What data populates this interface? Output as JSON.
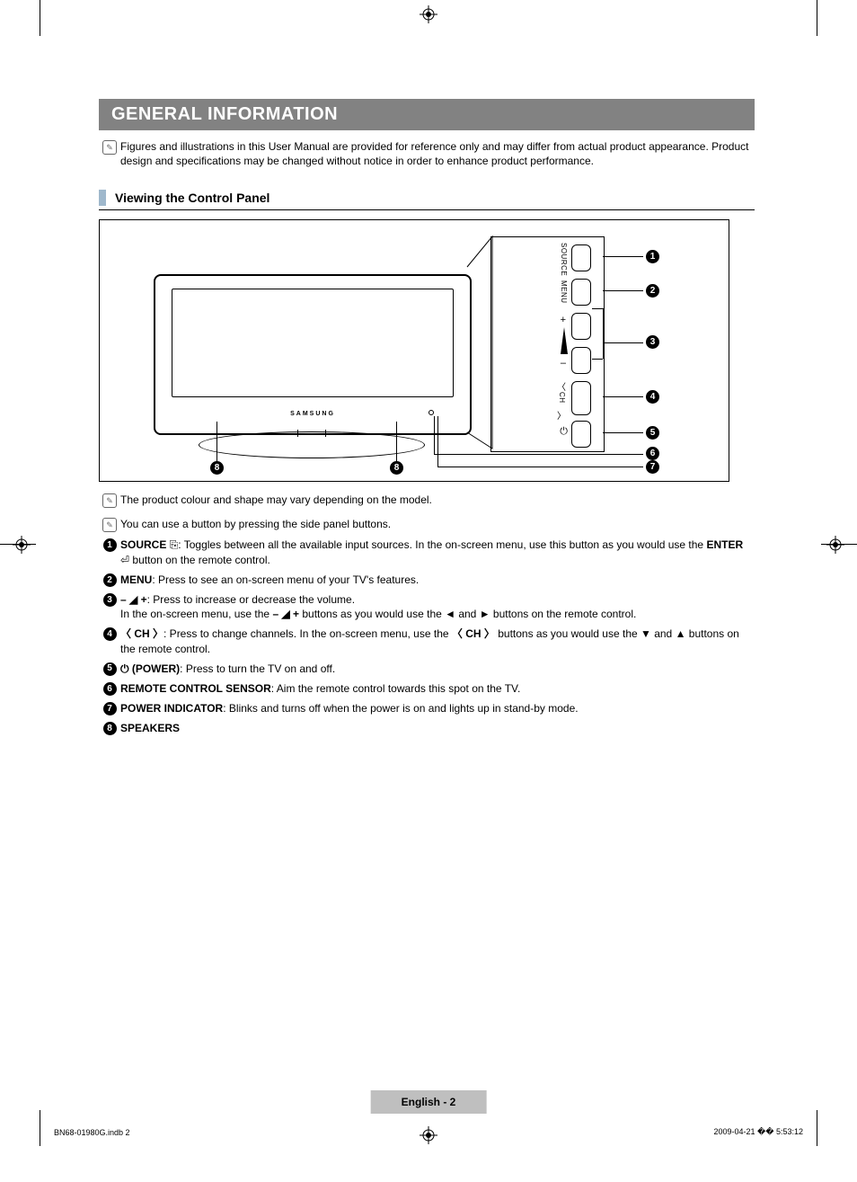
{
  "header": {
    "title": "GENERAL INFORMATION"
  },
  "intro_note": "Figures and illustrations in this User Manual are provided for reference only and may differ from actual product appearance. Product design and specifications may be changed without notice in order to enhance product performance.",
  "subsection": {
    "title": "Viewing the Control Panel"
  },
  "diagram": {
    "tv_brand": "SAMSUNG",
    "panel_labels": [
      "SOURCE",
      "MENU",
      "CH"
    ],
    "vol_plus": "+",
    "vol_minus": "–",
    "callouts": [
      "1",
      "2",
      "3",
      "4",
      "5",
      "6",
      "7",
      "8"
    ]
  },
  "notes_after": [
    "The product colour and shape may vary depending on the model.",
    "You can use a button by pressing the side panel buttons."
  ],
  "items": [
    {
      "n": "1",
      "html": "<b>SOURCE</b> <span class='inline-icon'>⎘</span>: Toggles between all the available input sources. In the on-screen menu, use this button as you would use the <b>ENTER</b> <span class='inline-icon'>⏎</span> button on the remote control."
    },
    {
      "n": "2",
      "html": "<b>MENU</b>: Press to see an on-screen menu of your TV's features."
    },
    {
      "n": "3",
      "html": "<b>– ◢ +</b>: Press to increase or decrease the volume.<br>In the on-screen menu, use the <b>– ◢ +</b> buttons as you would use the ◄ and ► buttons on the remote control."
    },
    {
      "n": "4",
      "html": "<b>〈 CH 〉</b>: Press to change channels. In the on-screen menu, use the <b>〈 CH 〉</b> buttons as you would use the ▼ and ▲ buttons on the remote control."
    },
    {
      "n": "5",
      "html": "<b>⏻ (POWER)</b>: Press to turn the TV on and off."
    },
    {
      "n": "6",
      "html": "<b>REMOTE CONTROL SENSOR</b>: Aim the remote control towards this spot on the TV."
    },
    {
      "n": "7",
      "html": "<b>POWER INDICATOR</b>: Blinks and turns off when the power is on and lights up in stand-by mode."
    },
    {
      "n": "8",
      "html": "<b>SPEAKERS</b>"
    }
  ],
  "footer": {
    "page_label": "English - 2",
    "file_meta": "BN68-01980G.indb   2",
    "timestamp": "2009-04-21   �� 5:53:12"
  },
  "colors": {
    "header_bg": "#828282",
    "sub_marker": "#9fb8cc",
    "footer_tab": "#bfbfbf"
  }
}
